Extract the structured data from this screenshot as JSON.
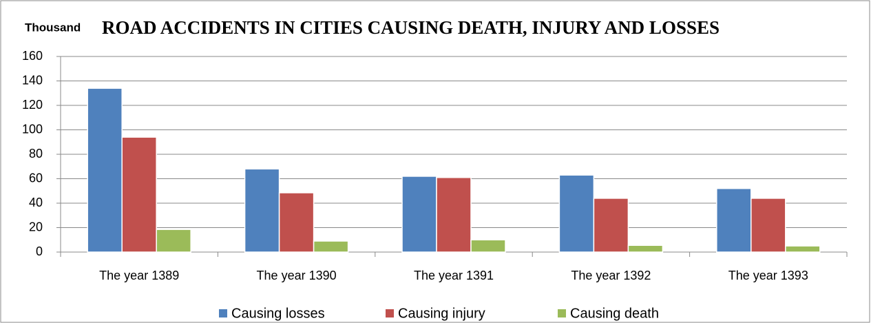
{
  "chart_data": {
    "type": "bar",
    "title": "ROAD  ACCIDENTS IN CITIES CAUSING DEATH, INJURY AND LOSSES",
    "y_label": "Thousand",
    "categories": [
      "The year 1389",
      "The year 1390",
      "The year 1391",
      "The year 1392",
      "The year 1393"
    ],
    "series": [
      {
        "name": "Causing losses",
        "color": "#4f81bd",
        "values": [
          134,
          68,
          62,
          63,
          52
        ]
      },
      {
        "name": "Causing injury",
        "color": "#c0504d",
        "values": [
          94,
          48.5,
          61,
          44,
          44
        ]
      },
      {
        "name": "Causing death",
        "color": "#9bbb59",
        "values": [
          18.5,
          9,
          10,
          5.5,
          5
        ]
      }
    ],
    "ylim": [
      0,
      160
    ],
    "yticks": [
      0,
      20,
      40,
      60,
      80,
      100,
      120,
      140,
      160
    ],
    "grid": true,
    "legend": "bottom"
  }
}
